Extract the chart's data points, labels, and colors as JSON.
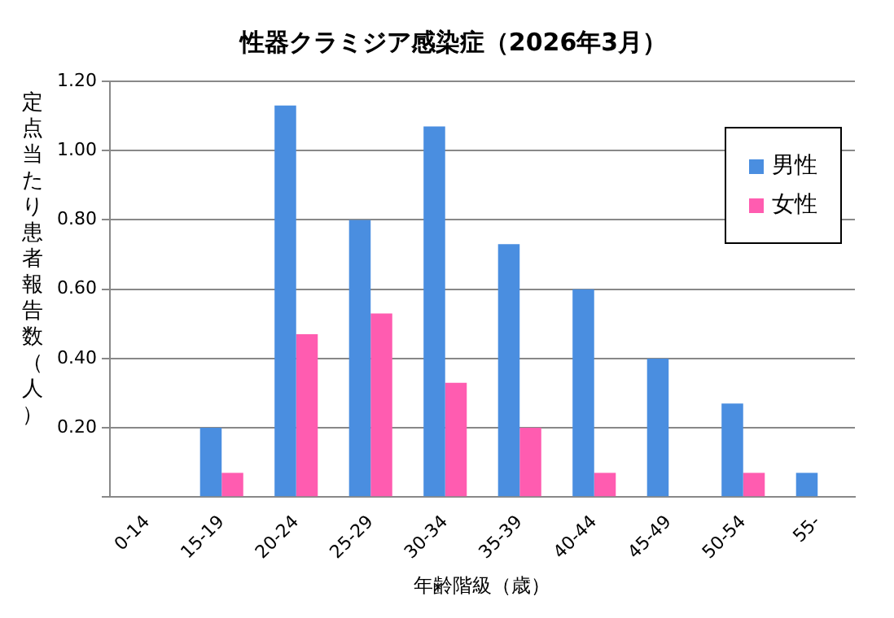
{
  "chart_data": {
    "type": "bar",
    "title": "性器クラミジア感染症（2026年3月）",
    "xlabel": "年齢階級（歳）",
    "ylabel": "定点当たり患者報告数（人）",
    "categories": [
      "0-14",
      "15-19",
      "20-24",
      "25-29",
      "30-34",
      "35-39",
      "40-44",
      "45-49",
      "50-54",
      "55-"
    ],
    "series": [
      {
        "name": "男性",
        "color": "#4a8ee0",
        "values": [
          0,
          0.2,
          1.13,
          0.8,
          1.07,
          0.73,
          0.6,
          0.4,
          0.27,
          0.07
        ]
      },
      {
        "name": "女性",
        "color": "#ff5cb0",
        "values": [
          0,
          0.07,
          0.47,
          0.53,
          0.33,
          0.2,
          0.07,
          0,
          0.07,
          0
        ]
      }
    ],
    "ylim": [
      0,
      1.2
    ],
    "yticks": [
      {
        "value": 0,
        "label": null
      },
      {
        "value": 0.2,
        "label": "0.20"
      },
      {
        "value": 0.4,
        "label": "0.40"
      },
      {
        "value": 0.6,
        "label": "0.60"
      },
      {
        "value": 0.8,
        "label": "0.80"
      },
      {
        "value": 1.0,
        "label": "1.00"
      },
      {
        "value": 1.2,
        "label": "1.20"
      }
    ],
    "grid": "y",
    "legend": "top right"
  }
}
